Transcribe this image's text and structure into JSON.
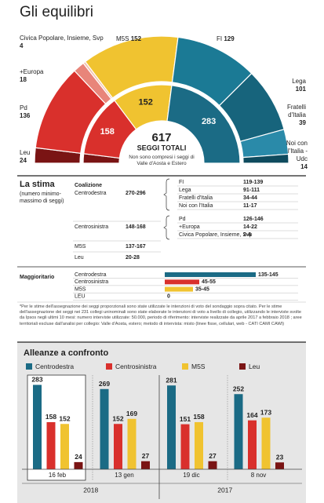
{
  "title": "Gli equilibri",
  "chart_data": [
    {
      "type": "semi-donut",
      "ring": "outer",
      "categories": [
        "Leu",
        "Pd",
        "+Europa",
        "Civica Popolare, Insieme, Svp",
        "M5S",
        "FI",
        "Lega",
        "Fratelli d'Italia",
        "Noi con l'Italia - Udc"
      ],
      "values": [
        24,
        136,
        18,
        4,
        152,
        129,
        101,
        39,
        14
      ],
      "colors": [
        "#7a1414",
        "#d9302c",
        "#e8857a",
        "#f2c2b2",
        "#f0c330",
        "#1b7a95",
        "#17647c",
        "#2a8aa9",
        "#0f4b5e"
      ]
    },
    {
      "type": "semi-donut",
      "ring": "inner",
      "values": [
        24,
        158,
        152,
        283
      ],
      "colors": [
        "#7a1414",
        "#d9302c",
        "#f0c330",
        "#1b6b85"
      ],
      "total": 617,
      "total_label": "SEGGI TOTALI",
      "note": "Non sono compresi i seggi di Valle d'Aosta e Estero"
    },
    {
      "type": "hbar",
      "title": "Maggioritario",
      "categories": [
        "Centrodestra",
        "Centrosinistra",
        "M5S",
        "LEU"
      ],
      "low": [
        135,
        45,
        35,
        0
      ],
      "high": [
        145,
        55,
        45,
        0
      ],
      "value_labels": [
        "135-145",
        "45-55",
        "35-45",
        "0"
      ],
      "colors": [
        "#1b6b85",
        "#d9302c",
        "#f0c330",
        "#7a1414"
      ],
      "xlim": [
        0,
        150
      ]
    },
    {
      "type": "grouped-bar",
      "title": "Alleanze a confronto",
      "year_groups": [
        {
          "label": "2018",
          "categories": [
            "16 feb",
            "13 gen"
          ]
        },
        {
          "label": "2017",
          "categories": [
            "19 dic",
            "8 nov"
          ]
        }
      ],
      "series": [
        {
          "name": "Centrodestra",
          "color": "#1b6b85",
          "values": [
            283,
            269,
            281,
            252
          ]
        },
        {
          "name": "Centrosinistra",
          "color": "#d9302c",
          "values": [
            158,
            152,
            151,
            164
          ]
        },
        {
          "name": "M5S",
          "color": "#f0c330",
          "values": [
            152,
            169,
            158,
            173
          ]
        },
        {
          "name": "Leu",
          "color": "#7a1414",
          "values": [
            24,
            27,
            27,
            23
          ]
        }
      ],
      "ylim": [
        0,
        300
      ]
    }
  ],
  "stima": {
    "title": "La stima",
    "subtitle": "(numero minimo-massimo di seggi)",
    "header": "Coalizione",
    "groups": [
      {
        "name": "Centrodestra",
        "range": "270-296",
        "parties": [
          [
            "FI",
            "119-139"
          ],
          [
            "Lega",
            "91-111"
          ],
          [
            "Fratelli d'Italia",
            "34-44"
          ],
          [
            "Noi con l'Italia",
            "11-17"
          ]
        ]
      },
      {
        "name": "Centrosinistra",
        "range": "148-168",
        "parties": [
          [
            "Pd",
            "126-146"
          ],
          [
            "+Europa",
            "14-22"
          ],
          [
            "Civica Popolare, Insieme, Svp",
            "2-6"
          ]
        ]
      },
      {
        "name": "M5S",
        "range": "137-167"
      },
      {
        "name": "Leu",
        "range": "20-28"
      }
    ]
  },
  "footnote": "*Per le stime dell'assegnazione dei seggi proporzionali sono state utilizzate le intenzioni di voto del sondaggio sopra citato. Per le stime dell'assegnazione dei seggi nei 231 collegi uninominali sono state elaborate le intenzioni di voto a livello di collegio, utilizzando le interviste svolte da Ipsos negli ultimi 10 mesi: numero interviste utilizzate: 50.000, periodo di riferimento: interviste realizzate da aprile 2017 a febbraio 2018 ; aree territoriali escluse dall'analisi per collegio: Valle d'Aosta, estero; metodo di intervista: misto (linee fisse, cellulari, web - CATI CAMI CAWI)"
}
